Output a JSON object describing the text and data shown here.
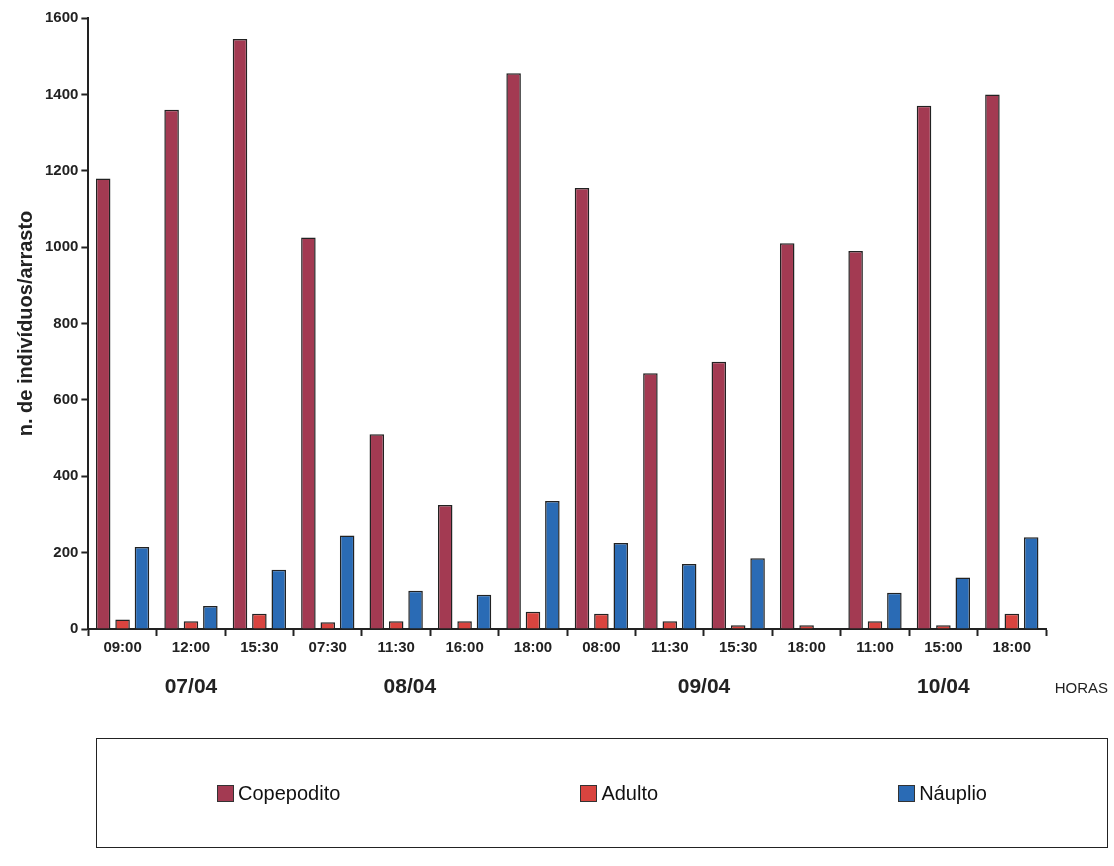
{
  "chart_data": {
    "type": "bar",
    "ylabel": "n. de indivíduos/arrasto",
    "xlabel": "HORAS",
    "categories": [
      "09:00",
      "12:00",
      "15:30",
      "07:30",
      "11:30",
      "16:00",
      "18:00",
      "08:00",
      "11:30",
      "15:30",
      "18:00",
      "11:00",
      "15:00",
      "18:00"
    ],
    "series": [
      {
        "name": "Copepodito",
        "color": "#a33a52",
        "values": [
          1180,
          1360,
          1545,
          1025,
          510,
          325,
          1455,
          1155,
          670,
          700,
          1010,
          990,
          1370,
          1400
        ]
      },
      {
        "name": "Adulto",
        "color": "#d9443f",
        "values": [
          25,
          20,
          40,
          18,
          20,
          20,
          45,
          40,
          20,
          10,
          10,
          20,
          10,
          40
        ]
      },
      {
        "name": "Náuplio",
        "color": "#2a6bb5",
        "values": [
          215,
          60,
          155,
          245,
          100,
          90,
          335,
          225,
          170,
          185,
          null,
          95,
          135,
          240
        ]
      }
    ],
    "annotations": [
      "07/04",
      "08/04",
      "09/04",
      "10/04"
    ],
    "ylim": [
      0,
      1600
    ],
    "yticks": [
      0,
      200,
      400,
      600,
      800,
      1000,
      1200,
      1400,
      1600
    ],
    "grid": false,
    "legend": "bottom"
  }
}
